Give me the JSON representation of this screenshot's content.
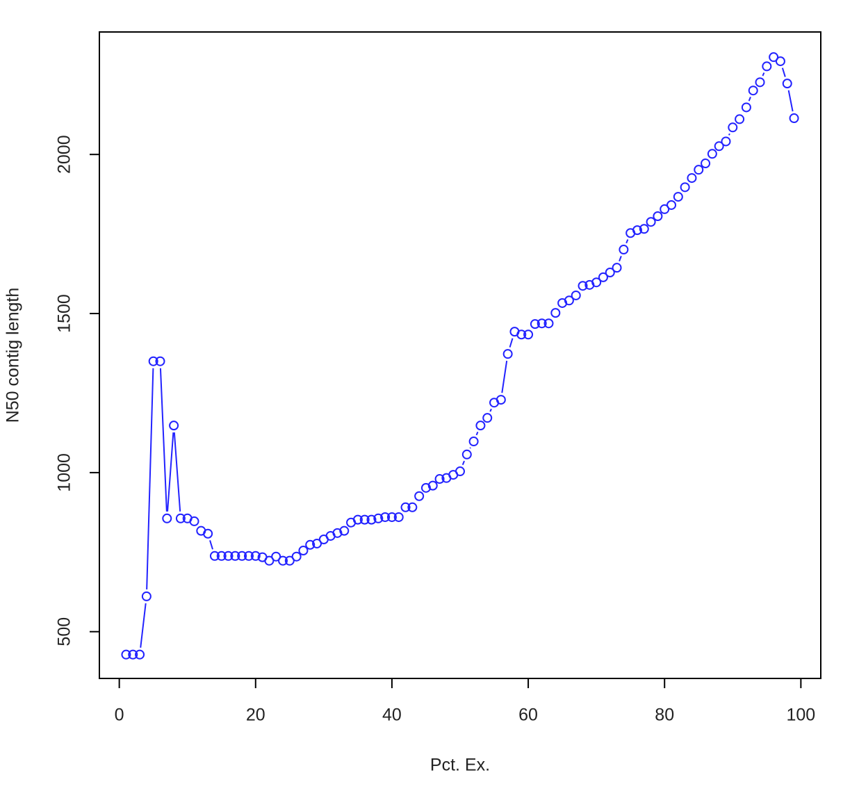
{
  "chart_data": {
    "type": "line",
    "markers": true,
    "color": "#2222ff",
    "xlabel": "Pct. Ex.",
    "ylabel": "N50 contig length",
    "x": [
      1,
      2,
      3,
      4,
      5,
      6,
      7,
      8,
      9,
      10,
      11,
      12,
      13,
      14,
      15,
      16,
      17,
      18,
      19,
      20,
      21,
      22,
      23,
      24,
      25,
      26,
      27,
      28,
      29,
      30,
      31,
      32,
      33,
      34,
      35,
      36,
      37,
      38,
      39,
      40,
      41,
      42,
      43,
      44,
      45,
      46,
      47,
      48,
      49,
      50,
      51,
      52,
      53,
      54,
      55,
      56,
      57,
      58,
      59,
      60,
      61,
      62,
      63,
      64,
      65,
      66,
      67,
      68,
      69,
      70,
      71,
      72,
      73,
      74,
      75,
      76,
      77,
      78,
      79,
      80,
      81,
      82,
      83,
      84,
      85,
      86,
      87,
      88,
      89,
      90,
      91,
      92,
      93,
      94,
      95,
      96,
      97,
      98,
      99
    ],
    "values": [
      428,
      428,
      428,
      611,
      1350,
      1350,
      856,
      1148,
      856,
      856,
      847,
      817,
      808,
      738,
      738,
      738,
      738,
      738,
      738,
      738,
      734,
      723,
      736,
      723,
      723,
      736,
      755,
      773,
      777,
      790,
      801,
      810,
      817,
      843,
      852,
      852,
      852,
      856,
      860,
      860,
      860,
      891,
      891,
      926,
      952,
      959,
      980,
      983,
      993,
      1004,
      1057,
      1098,
      1148,
      1172,
      1220,
      1229,
      1373,
      1443,
      1434,
      1434,
      1467,
      1469,
      1469,
      1502,
      1533,
      1541,
      1557,
      1587,
      1590,
      1598,
      1614,
      1629,
      1644,
      1701,
      1753,
      1762,
      1766,
      1788,
      1806,
      1828,
      1841,
      1867,
      1897,
      1926,
      1952,
      1972,
      2002,
      2026,
      2041,
      2085,
      2111,
      2148,
      2201,
      2227,
      2277,
      2306,
      2293,
      2223,
      2114
    ],
    "xlim": [
      -2.92,
      102.92
    ],
    "xticks": [
      0,
      20,
      40,
      60,
      80,
      100
    ],
    "ylim": [
      353,
      2385
    ],
    "yticks": [
      500,
      1000,
      1500,
      2000
    ]
  }
}
